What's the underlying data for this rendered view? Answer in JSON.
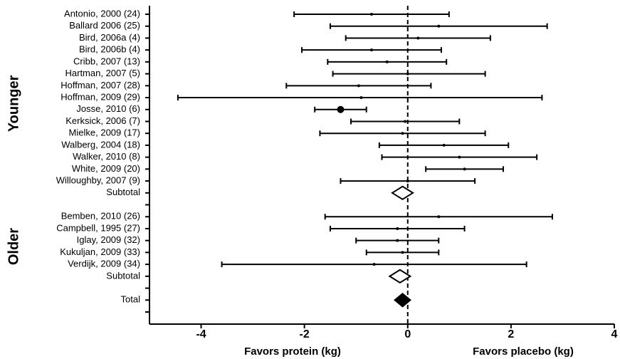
{
  "chart_data": {
    "type": "forest",
    "groups": [
      {
        "name": "Younger",
        "studies": [
          {
            "label": "Antonio, 2000 (24)",
            "estimate": -0.7,
            "lower": -2.2,
            "upper": 0.8
          },
          {
            "label": "Ballard 2006 (25)",
            "estimate": 0.6,
            "lower": -1.5,
            "upper": 2.7
          },
          {
            "label": "Bird, 2006a (4)",
            "estimate": 0.2,
            "lower": -1.2,
            "upper": 1.6
          },
          {
            "label": "Bird, 2006b (4)",
            "estimate": -0.7,
            "lower": -2.05,
            "upper": 0.65
          },
          {
            "label": "Cribb, 2007 (13)",
            "estimate": -0.4,
            "lower": -1.55,
            "upper": 0.75
          },
          {
            "label": "Hartman, 2007 (5)",
            "estimate": 0,
            "lower": -1.45,
            "upper": 1.5
          },
          {
            "label": "Hoffman, 2007 (28)",
            "estimate": -0.95,
            "lower": -2.35,
            "upper": 0.45
          },
          {
            "label": "Hoffman, 2009 (29)",
            "estimate": -0.9,
            "lower": -4.45,
            "upper": 2.6
          },
          {
            "label": "Josse, 2010 (6)",
            "estimate": -1.3,
            "lower": -1.8,
            "upper": -0.8,
            "large_marker": true
          },
          {
            "label": "Kerksick, 2006 (7)",
            "estimate": -0.05,
            "lower": -1.1,
            "upper": 1.0
          },
          {
            "label": "Mielke, 2009 (17)",
            "estimate": -0.1,
            "lower": -1.7,
            "upper": 1.5
          },
          {
            "label": "Walberg, 2004 (18)",
            "estimate": 0.7,
            "lower": -0.55,
            "upper": 1.95
          },
          {
            "label": "Walker, 2010 (8)",
            "estimate": 1.0,
            "lower": -0.5,
            "upper": 2.5
          },
          {
            "label": "White, 2009 (20)",
            "estimate": 1.1,
            "lower": 0.35,
            "upper": 1.85
          },
          {
            "label": "Willoughby, 2007 (9)",
            "estimate": 0,
            "lower": -1.3,
            "upper": 1.3
          }
        ],
        "subtotal": {
          "label": "Subtotal",
          "estimate": -0.1,
          "lower": -0.3,
          "upper": 0.1
        }
      },
      {
        "name": "Older",
        "studies": [
          {
            "label": "Bemben, 2010 (26)",
            "estimate": 0.6,
            "lower": -1.6,
            "upper": 2.8
          },
          {
            "label": "Campbell, 1995 (27)",
            "estimate": -0.2,
            "lower": -1.5,
            "upper": 1.1
          },
          {
            "label": "Iglay, 2009 (32)",
            "estimate": -0.2,
            "lower": -1.0,
            "upper": 0.6
          },
          {
            "label": "Kukuljan, 2009 (33)",
            "estimate": -0.1,
            "lower": -0.8,
            "upper": 0.6
          },
          {
            "label": "Verdijk, 2009 (34)",
            "estimate": -0.65,
            "lower": -3.6,
            "upper": 2.3
          }
        ],
        "subtotal": {
          "label": "Subtotal",
          "estimate": -0.15,
          "lower": -0.35,
          "upper": 0.05
        }
      }
    ],
    "total": {
      "label": "Total",
      "estimate": -0.1,
      "lower": -0.25,
      "upper": 0.05
    },
    "xlim": [
      -5,
      4
    ],
    "xticks": [
      -4,
      -2,
      0,
      2,
      4
    ],
    "xlabel_left": "Favors protein  (kg)",
    "xlabel_right": "Favors placebo (kg)",
    "color": "#000000"
  }
}
